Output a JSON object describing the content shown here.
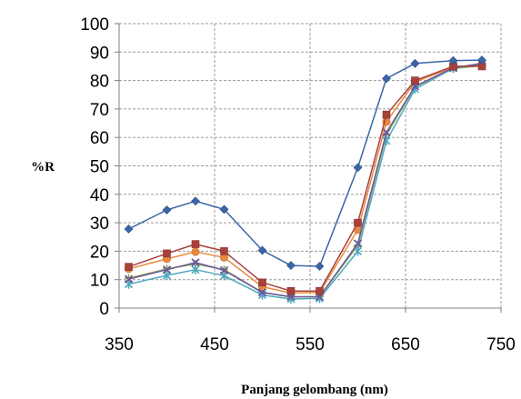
{
  "chart_data": {
    "type": "line",
    "xlabel": "Panjang gelombang (nm)",
    "ylabel": "%R",
    "xlim": [
      350,
      750
    ],
    "ylim": [
      0,
      100
    ],
    "xticks": [
      350,
      450,
      550,
      650,
      750
    ],
    "yticks": [
      0,
      10,
      20,
      30,
      40,
      50,
      60,
      70,
      80,
      90,
      100
    ],
    "grid": "dashed",
    "x": [
      360,
      400,
      430,
      460,
      500,
      530,
      560,
      600,
      630,
      660,
      700,
      730
    ],
    "series": [
      {
        "color": "#3A65A7",
        "marker": "diamond",
        "values": [
          27.8,
          34.5,
          37.6,
          34.7,
          20.3,
          15.0,
          14.7,
          49.4,
          80.7,
          86.0,
          87.0,
          87.2
        ]
      },
      {
        "color": "#A9403C",
        "marker": "square",
        "values": [
          14.5,
          19.2,
          22.5,
          20.0,
          9.0,
          6.0,
          6.0,
          30.0,
          68.0,
          80.0,
          85.0,
          85.0
        ]
      },
      {
        "color": "#6D569A",
        "marker": "x",
        "values": [
          10.2,
          13.5,
          16.0,
          13.3,
          5.5,
          4.0,
          4.0,
          22.7,
          61.8,
          78.0,
          84.5,
          86.0
        ]
      },
      {
        "color": "#4DA8BE",
        "marker": "star",
        "values": [
          8.4,
          11.5,
          13.5,
          11.4,
          4.6,
          3.2,
          3.4,
          20.0,
          58.8,
          77.0,
          84.3,
          85.8
        ]
      },
      {
        "color": "#E88A3E",
        "marker": "circle",
        "values": [
          13.8,
          17.3,
          19.8,
          17.8,
          7.5,
          5.3,
          5.5,
          27.5,
          65.5,
          79.5,
          84.7,
          85.5
        ]
      },
      {
        "color": "#8FAE4E",
        "marker": "plus",
        "values": [
          10.5,
          13.8,
          15.5,
          13.5,
          5.5,
          3.9,
          4.0,
          22.0,
          61.0,
          77.8,
          84.2,
          85.2
        ]
      }
    ]
  }
}
